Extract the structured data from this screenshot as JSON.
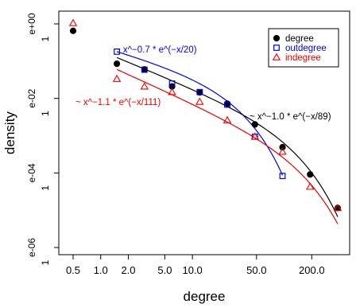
{
  "chart_data": {
    "type": "scatter",
    "xlabel": "degree",
    "ylabel": "density",
    "x_scale": "log",
    "y_scale": "log",
    "xlim": [
      0.4,
      450
    ],
    "ylim": [
      3e-07,
      2.5
    ],
    "x_ticks": [
      {
        "value": 0.5,
        "label": "0.5"
      },
      {
        "value": 1.0,
        "label": "1.0"
      },
      {
        "value": 2.0,
        "label": "2.0"
      },
      {
        "value": 5.0,
        "label": "5.0"
      },
      {
        "value": 10.0,
        "label": "10.0"
      },
      {
        "value": 50.0,
        "label": "50.0"
      },
      {
        "value": 200.0,
        "label": "200.0"
      }
    ],
    "y_ticks": [
      {
        "value": 1,
        "sci": "e+00",
        "mant": "1"
      },
      {
        "value": 0.01,
        "sci": "e-02",
        "mant": "1"
      },
      {
        "value": 0.0001,
        "sci": "e-04",
        "mant": "1"
      },
      {
        "value": 1e-06,
        "sci": "e-06",
        "mant": "1"
      }
    ],
    "series": [
      {
        "name": "degree",
        "marker": "filled-circle",
        "color": "#000000",
        "x": [
          0.5,
          1.5,
          3,
          6,
          12,
          24,
          48,
          96,
          192,
          384
        ],
        "y": [
          0.65,
          0.085,
          0.06,
          0.021,
          0.0145,
          0.0072,
          0.002,
          0.00049,
          9.12e-05,
          1.15e-05
        ]
      },
      {
        "name": "outdegree",
        "marker": "open-square",
        "color": "#0000ee",
        "x": [
          1.5,
          3,
          6,
          12,
          24,
          48,
          96
        ],
        "y": [
          0.18,
          0.059,
          0.025,
          0.0148,
          0.0068,
          0.00094,
          8.32e-05
        ]
      },
      {
        "name": "indegree",
        "marker": "open-triangle",
        "color": "#ee0000",
        "x": [
          0.5,
          1.5,
          3,
          6,
          12,
          24,
          48,
          96,
          192,
          384
        ],
        "y": [
          1.05,
          0.0335,
          0.0209,
          0.0148,
          0.0081,
          0.0026,
          0.00094,
          0.00037,
          4.27e-05,
          1.15e-05
        ]
      }
    ],
    "fits": [
      {
        "label": "~ x^−0.7 * e^(−x/20)",
        "color": "#0000ee",
        "a": 0.7,
        "c": 20,
        "x_range": [
          1.5,
          96
        ],
        "anchor_x": 1.5,
        "anchor_y": 0.18
      },
      {
        "label": "~ x^−1.1 * e^(−x/111)",
        "color": "#ee0000",
        "a": 1.1,
        "c": 111,
        "x_range": [
          1.5,
          384
        ],
        "anchor_x": 1.5,
        "anchor_y": 0.06
      },
      {
        "label": "~ x^−1.0 * e^(−x/89)",
        "color": "#000000",
        "a": 1.0,
        "c": 89,
        "x_range": [
          1.5,
          384
        ],
        "anchor_x": 1.5,
        "anchor_y": 0.125
      }
    ],
    "legend_position": "top-right"
  }
}
